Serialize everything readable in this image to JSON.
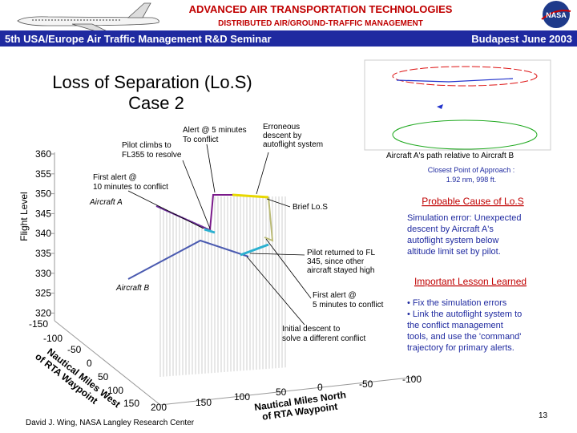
{
  "header": {
    "title": "ADVANCED AIR TRANSPORTATION TECHNOLOGIES",
    "subtitle": "DISTRIBUTED AIR/GROUND-TRAFFIC MANAGEMENT",
    "seminar": "5th USA/Europe Air Traffic Management R&D Seminar",
    "location": "Budapest June 2003",
    "logo": "NASA"
  },
  "slide": {
    "title": "Loss of Separation (Lo.S)",
    "subtitle": "Case 2"
  },
  "plot": {
    "y_axis_label": "Flight Level",
    "y_ticks": [
      "360",
      "355",
      "350",
      "345",
      "340",
      "335",
      "330",
      "325",
      "320"
    ],
    "west_axis_label": [
      "Nautical Miles West",
      "of RTA Waypoint"
    ],
    "west_ticks": [
      "-150",
      "-100",
      "-50",
      "0",
      "50",
      "100",
      "150",
      "200"
    ],
    "north_axis_label": [
      "Nautical Miles North",
      "of RTA Waypoint"
    ],
    "north_ticks": [
      "150",
      "100",
      "50",
      "0",
      "-50",
      "-100"
    ],
    "annotations": {
      "alert5": [
        "Alert @ 5 minutes",
        "To conflict"
      ],
      "climb": [
        "Pilot climbs to",
        "FL355 to resolve"
      ],
      "erroneous": [
        "Erroneous",
        "descent by",
        "autoflight system"
      ],
      "first10": [
        "First alert @",
        "10 minutes to conflict"
      ],
      "aircraft_a": "Aircraft A",
      "brief": "Brief Lo.S",
      "returned": [
        "Pilot returned to FL",
        "345, since other",
        "aircraft stayed high"
      ],
      "aircraft_b": "Aircraft B",
      "first5": [
        "First alert @",
        "5 minutes to conflict"
      ],
      "initial": [
        "Initial descent to",
        "solve a different conflict"
      ]
    }
  },
  "inset": {
    "caption": "Aircraft A's path relative to Aircraft B",
    "cpa": [
      "Closest Point of Approach :",
      "1.92 nm, 998 ft."
    ]
  },
  "cause": {
    "heading": "Probable Cause of Lo.S",
    "lines": [
      "Simulation error: Unexpected",
      "descent by Aircraft A's",
      "autoflight system below",
      "altitude limit set by pilot."
    ]
  },
  "lesson": {
    "heading": "Important Lesson Learned",
    "lines": [
      "• Fix the simulation errors",
      "• Link the autoflight system to",
      "the conflict management",
      "tools, and use the 'command'",
      "trajectory for primary alerts."
    ]
  },
  "footer": {
    "author": "David J. Wing, NASA Langley Research Center",
    "page": "13"
  }
}
